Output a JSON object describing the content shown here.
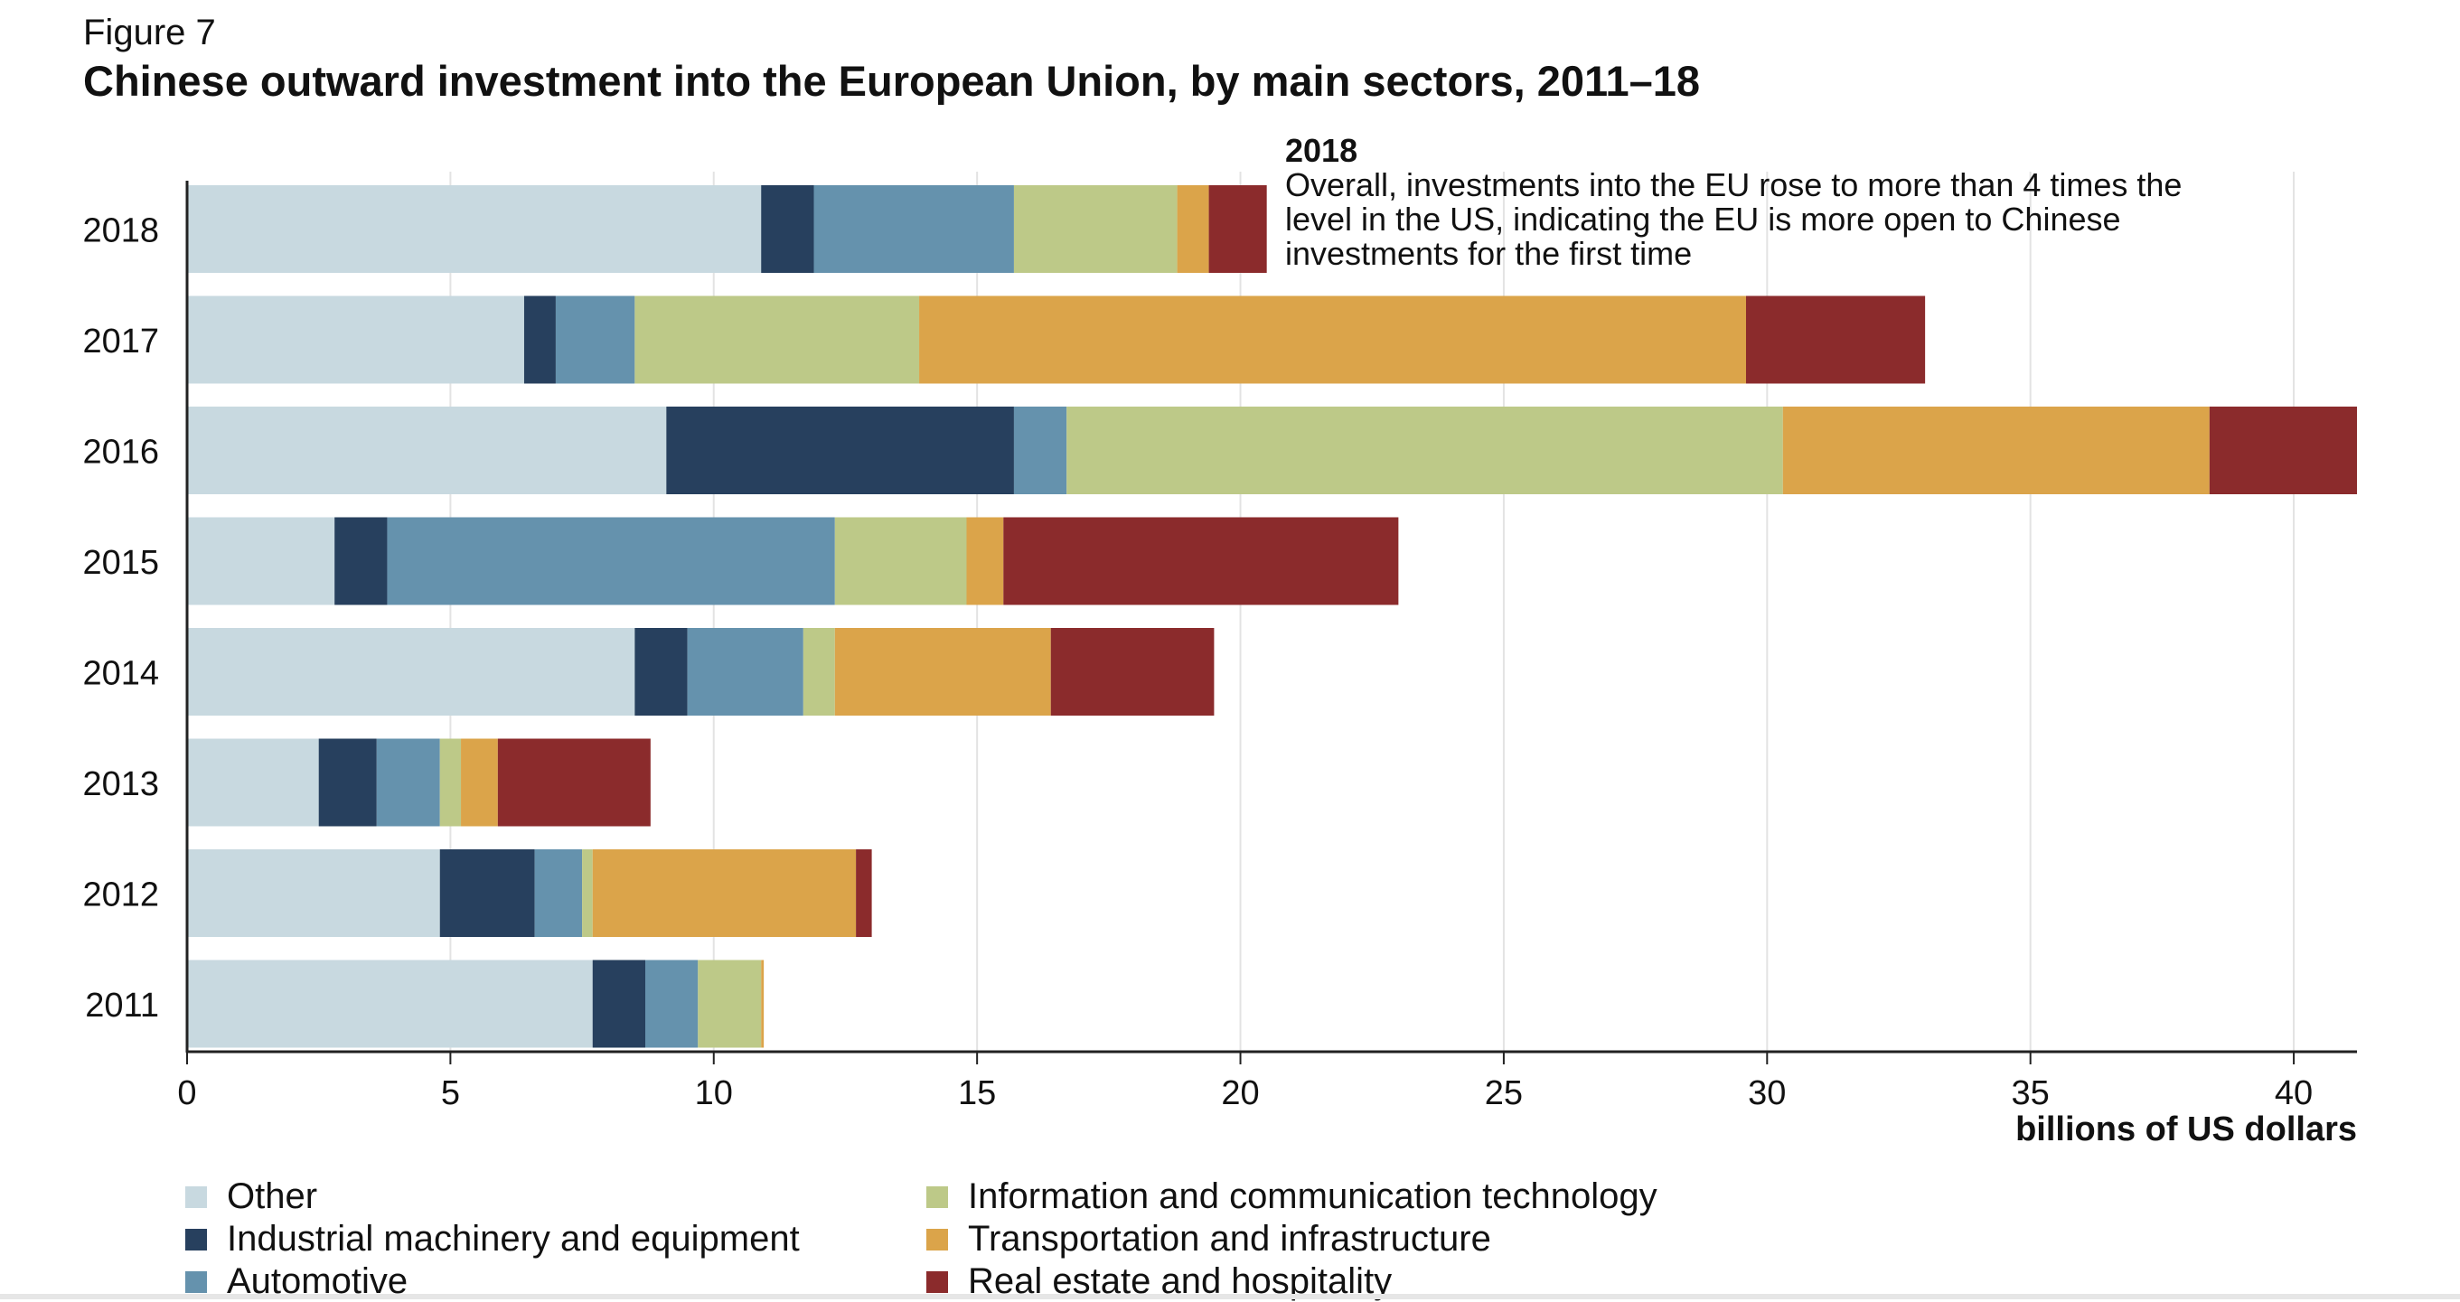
{
  "figure_label": "Figure 7",
  "title": "Chinese outward investment into the European Union, by main sectors, 2011–18",
  "annotation": {
    "year": "2018",
    "text": "Overall, investments into the EU rose to more than 4 times the level in the US, indicating the EU is more open to Chinese investments for the first time"
  },
  "colors": {
    "Other": "#c8d9e0",
    "Industrial machinery and equipment": "#27405e",
    "Automotive": "#6592ad",
    "Information and communication technology": "#bdc988",
    "Transportation and infrastructure": "#dba44a",
    "Real estate and hospitality": "#8b2b2c",
    "gridline": "#e3e3e3",
    "axis": "#222222"
  },
  "chart_data": {
    "type": "bar",
    "orientation": "horizontal",
    "stacked": true,
    "categories": [
      "2018",
      "2017",
      "2016",
      "2015",
      "2014",
      "2013",
      "2012",
      "2011"
    ],
    "series": [
      {
        "name": "Other",
        "values": [
          10.9,
          6.4,
          9.1,
          2.8,
          8.5,
          2.5,
          4.8,
          7.7
        ]
      },
      {
        "name": "Industrial machinery and equipment",
        "values": [
          1.0,
          0.6,
          6.6,
          1.0,
          1.0,
          1.1,
          1.8,
          1.0
        ]
      },
      {
        "name": "Automotive",
        "values": [
          3.8,
          1.5,
          1.0,
          8.5,
          2.2,
          1.2,
          0.9,
          1.0
        ]
      },
      {
        "name": "Information and communication technology",
        "values": [
          3.1,
          5.4,
          13.6,
          2.5,
          0.6,
          0.4,
          0.2,
          1.2
        ]
      },
      {
        "name": "Transportation and infrastructure",
        "values": [
          0.6,
          15.7,
          8.1,
          0.7,
          4.1,
          0.7,
          5.0,
          0.05
        ]
      },
      {
        "name": "Real estate and hospitality",
        "values": [
          1.1,
          3.4,
          2.8,
          7.5,
          3.1,
          2.9,
          0.3,
          0.0
        ]
      }
    ],
    "title": "Chinese outward investment into the European Union, by main sectors, 2011–18",
    "xlabel": "billions of US dollars",
    "ylabel": "",
    "xlim": [
      0,
      41.2
    ],
    "xticks": [
      0,
      5,
      10,
      15,
      20,
      25,
      30,
      35,
      40
    ],
    "grid": true,
    "legend_position": "bottom"
  },
  "legend": {
    "items": [
      "Other",
      "Industrial machinery and equipment",
      "Automotive",
      "Information and communication technology",
      "Transportation and infrastructure",
      "Real estate and hospitality"
    ]
  }
}
